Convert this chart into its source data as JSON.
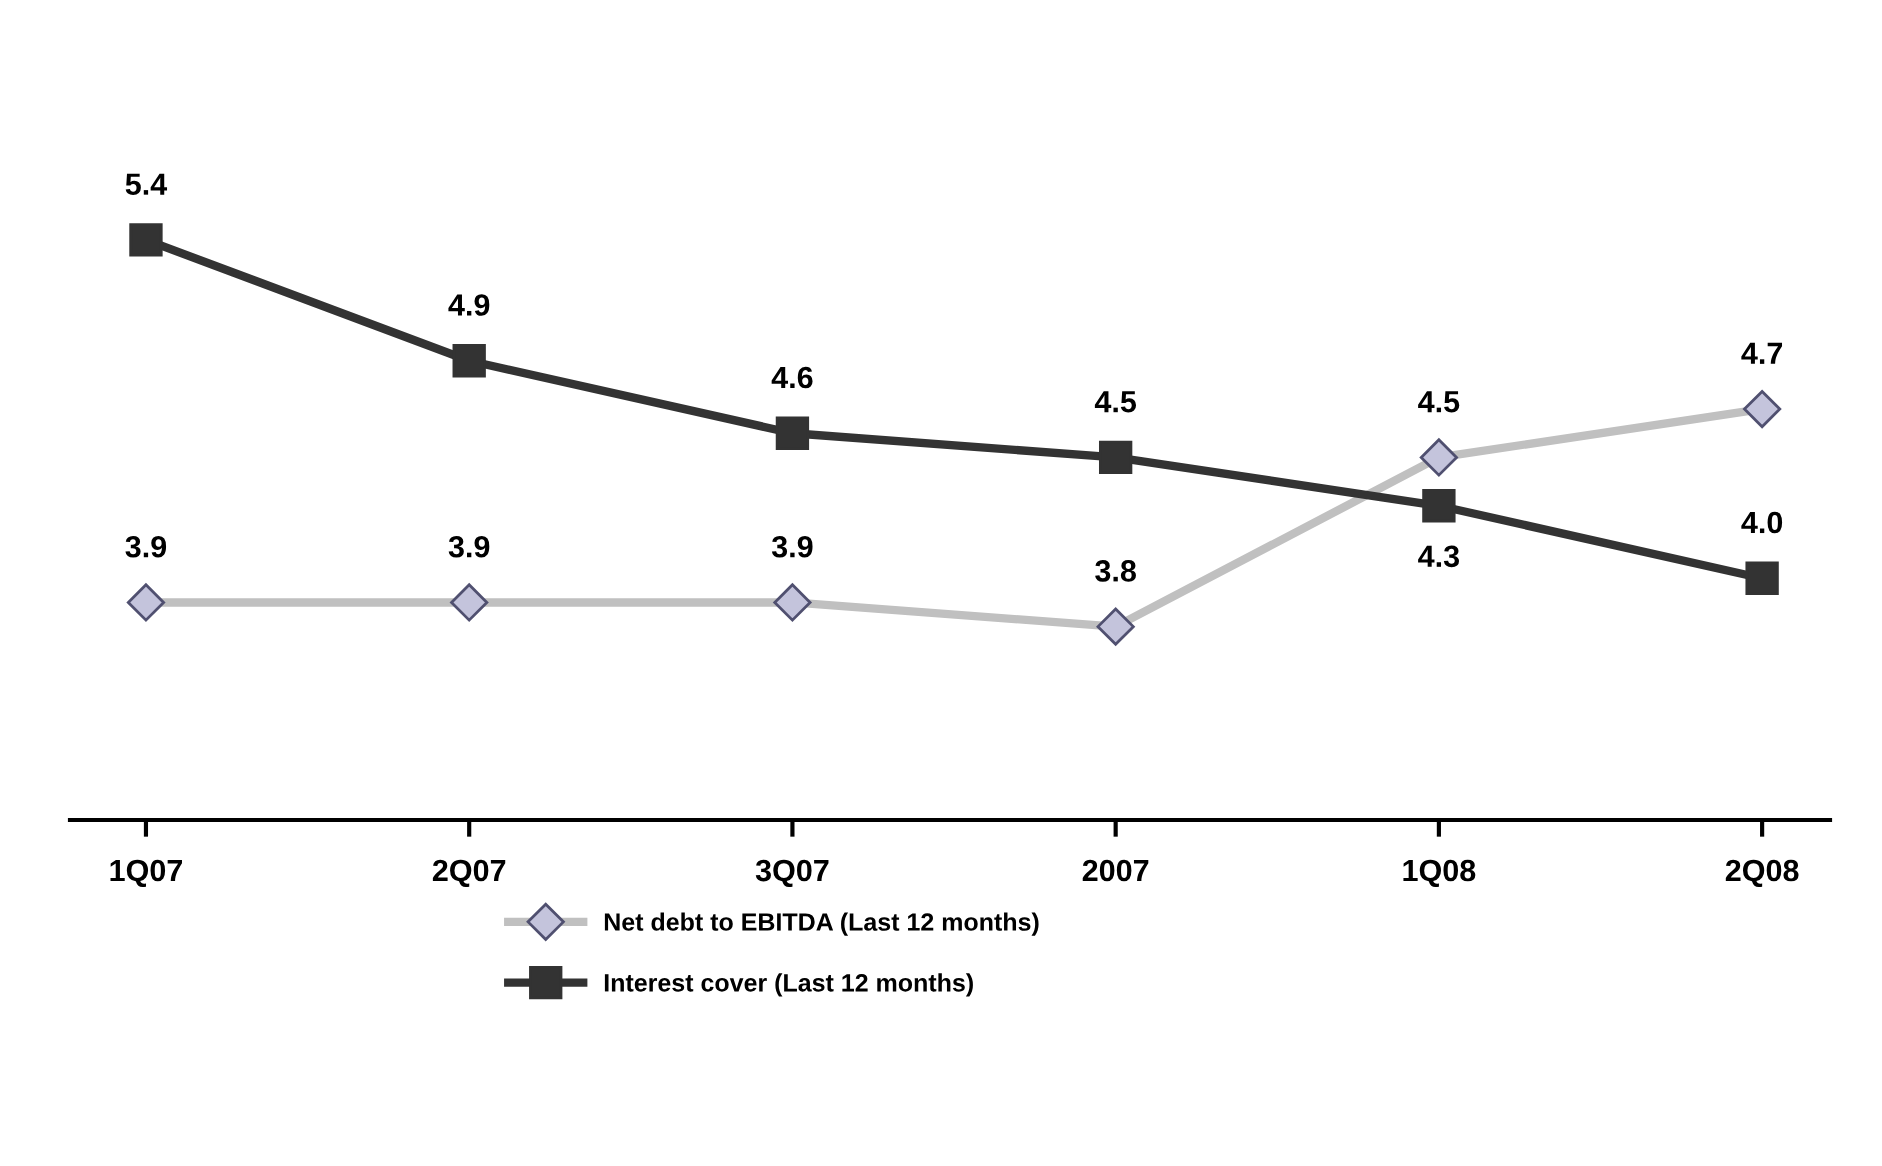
{
  "chart_data": {
    "type": "line",
    "categories": [
      "1Q07",
      "2Q07",
      "3Q07",
      "2007",
      "1Q08",
      "2Q08"
    ],
    "series": [
      {
        "name": "Net debt to EBITDA (Last 12 months)",
        "color": "#c0c0c0",
        "marker": "diamond",
        "values": [
          3.9,
          3.9,
          3.9,
          3.8,
          4.5,
          4.7
        ],
        "value_labels": [
          "3.9",
          "3.9",
          "3.9",
          "3.8",
          "4.5",
          "4.7"
        ]
      },
      {
        "name": "Interest cover (Last 12 months)",
        "color": "#333333",
        "marker": "square",
        "values": [
          5.4,
          4.9,
          4.6,
          4.5,
          4.3,
          4.0
        ],
        "value_labels": [
          "5.4",
          "4.9",
          "4.6",
          "4.5",
          "4.3",
          "4.0"
        ]
      }
    ],
    "tick_labels": "x",
    "legend": "bottom",
    "grid": false
  }
}
